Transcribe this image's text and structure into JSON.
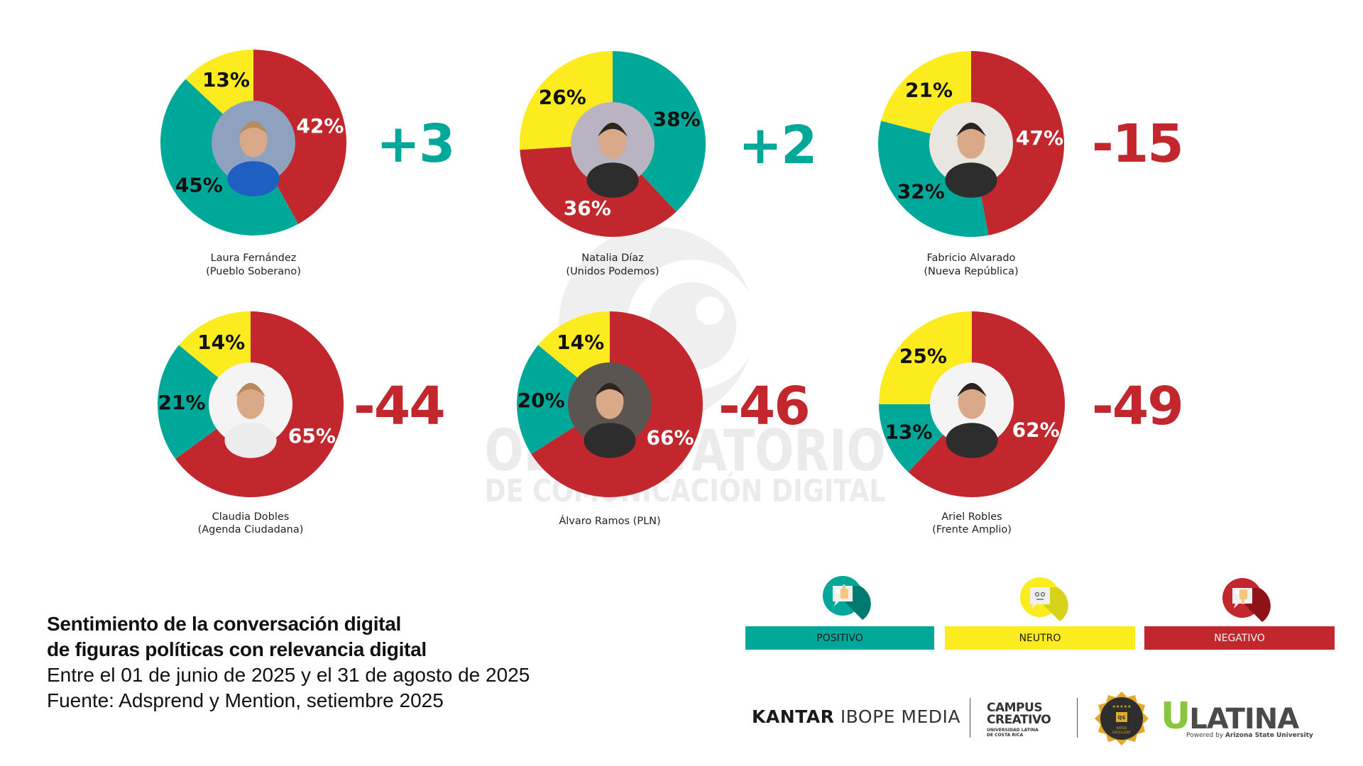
{
  "watermark": {
    "line1": "OBSERVATORIO",
    "line2": "DE COMUNICACIÓN DIGITAL"
  },
  "colors": {
    "positivo": "#00A89A",
    "neutro": "#FCEB1F",
    "negativo": "#C1272D",
    "net_positive": "#00A89A",
    "net_negative": "#C1272D"
  },
  "chart_data": {
    "type": "pie",
    "subtype": "donut",
    "title": "Sentimiento de la conversación digital de figuras políticas con relevancia digital",
    "legend": [
      "POSITIVO",
      "NEUTRO",
      "NEGATIVO"
    ],
    "legend_placement": "bottom-right",
    "charts": [
      {
        "name": "Laura Fernández",
        "party": "(Pueblo Soberano)",
        "net": "+3",
        "order": [
          "negativo",
          "positivo",
          "neutro"
        ],
        "values": {
          "positivo": 45,
          "neutro": 13,
          "negativo": 42
        },
        "labels": {
          "positivo": "45%",
          "neutro": "13%",
          "negativo": "42%"
        }
      },
      {
        "name": "Natalia Díaz",
        "party": "(Unidos Podemos)",
        "net": "+2",
        "order": [
          "positivo",
          "negativo",
          "neutro"
        ],
        "values": {
          "positivo": 38,
          "neutro": 26,
          "negativo": 36
        },
        "labels": {
          "positivo": "38%",
          "neutro": "26%",
          "negativo": "36%"
        }
      },
      {
        "name": "Fabricio Alvarado",
        "party": "(Nueva República)",
        "net": "-15",
        "order": [
          "negativo",
          "positivo",
          "neutro"
        ],
        "values": {
          "positivo": 32,
          "neutro": 21,
          "negativo": 47
        },
        "labels": {
          "positivo": "32%",
          "neutro": "21%",
          "negativo": "47%"
        }
      },
      {
        "name": "Claudia Dobles",
        "party": "(Agenda Ciudadana)",
        "net": "-44",
        "order": [
          "negativo",
          "positivo",
          "neutro"
        ],
        "values": {
          "positivo": 21,
          "neutro": 14,
          "negativo": 65
        },
        "labels": {
          "positivo": "21%",
          "neutro": "14%",
          "negativo": "65%"
        }
      },
      {
        "name": "Álvaro Ramos (PLN)",
        "party": "",
        "net": "-46",
        "order": [
          "negativo",
          "positivo",
          "neutro"
        ],
        "values": {
          "positivo": 20,
          "neutro": 14,
          "negativo": 66
        },
        "labels": {
          "positivo": "20%",
          "neutro": "14%",
          "negativo": "66%"
        }
      },
      {
        "name": "Ariel Robles",
        "party": "(Frente Amplio)",
        "net": "-49",
        "order": [
          "negativo",
          "positivo",
          "neutro"
        ],
        "values": {
          "positivo": 13,
          "neutro": 25,
          "negativo": 62
        },
        "labels": {
          "positivo": "13%",
          "neutro": "25%",
          "negativo": "62%"
        }
      }
    ]
  },
  "legend": {
    "items": [
      {
        "key": "positivo",
        "label": "POSITIVO",
        "icon": "thumbs-up-chat-icon"
      },
      {
        "key": "neutro",
        "label": "NEUTRO",
        "icon": "neutral-face-chat-icon"
      },
      {
        "key": "negativo",
        "label": "NEGATIVO",
        "icon": "thumbs-down-chat-icon"
      }
    ]
  },
  "caption": {
    "title_line1": "Sentimiento de la conversación digital",
    "title_line2": "de figuras políticas con relevancia digital",
    "period": "Entre el 01 de junio de 2025 y el 31 de agosto de 2025",
    "source": "Fuente: Adsprend y Mention, setiembre 2025"
  },
  "logos": {
    "kantar_bold": "KANTAR",
    "kantar_light": "IBOPE MEDIA",
    "campus_line1": "CAMPUS",
    "campus_line2": "CREATIVO",
    "campus_sub1": "UNIVERSIDAD LATINA",
    "campus_sub2": "DE COSTA RICA",
    "qs_badge_top": "★★★★★",
    "qs_badge_mid": "QS",
    "qs_badge_bottom1": "RATED",
    "qs_badge_bottom2": "EXCELLENT",
    "ulatina_u": "U",
    "ulatina_rest": "LATINA",
    "ulatina_powered": "Powered by",
    "ulatina_asu": "Arizona State University"
  }
}
